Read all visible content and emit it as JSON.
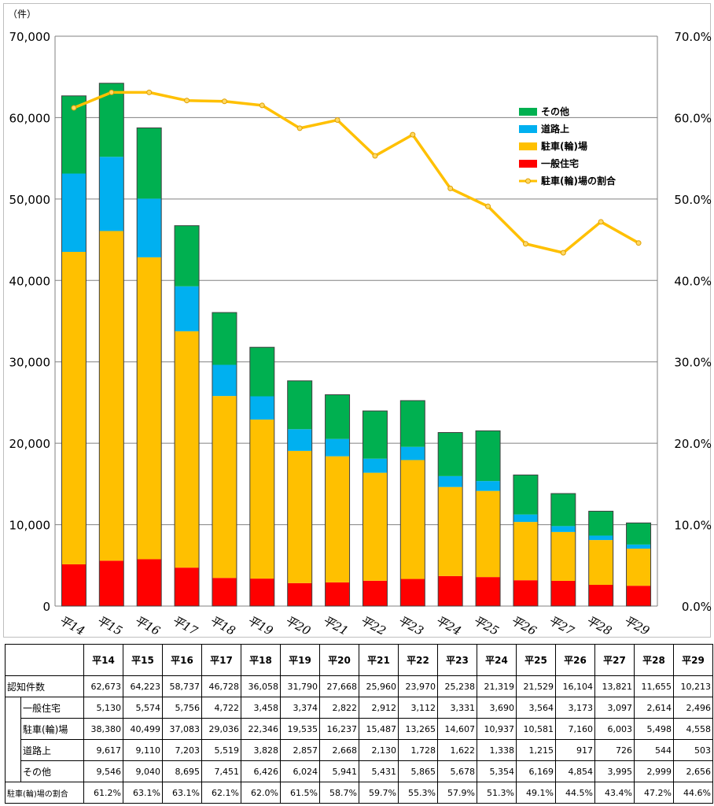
{
  "chart_data": {
    "type": "bar",
    "stacked": true,
    "unit_label": "（件）",
    "categories": [
      "平14",
      "平15",
      "平16",
      "平17",
      "平18",
      "平19",
      "平20",
      "平21",
      "平22",
      "平23",
      "平24",
      "平25",
      "平26",
      "平27",
      "平28",
      "平29"
    ],
    "y_left": {
      "min": 0,
      "max": 70000,
      "ticks": [
        "0",
        "10,000",
        "20,000",
        "30,000",
        "40,000",
        "50,000",
        "60,000",
        "70,000"
      ]
    },
    "y_right": {
      "min": 0,
      "max": 0.7,
      "ticks": [
        "0.0%",
        "10.0%",
        "20.0%",
        "30.0%",
        "40.0%",
        "50.0%",
        "60.0%",
        "70.0%"
      ]
    },
    "grid": true,
    "legend_position": "top-right",
    "series": [
      {
        "name": "一般住宅",
        "color": "#ff0000",
        "values": [
          5130,
          5574,
          5756,
          4722,
          3458,
          3374,
          2822,
          2912,
          3112,
          3331,
          3690,
          3564,
          3173,
          3097,
          2614,
          2496
        ]
      },
      {
        "name": "駐車(輪)場",
        "color": "#ffc000",
        "values": [
          38380,
          40499,
          37083,
          29036,
          22346,
          19535,
          16237,
          15487,
          13265,
          14607,
          10937,
          10581,
          7160,
          6003,
          5498,
          4558
        ]
      },
      {
        "name": "道路上",
        "color": "#00b0f0",
        "values": [
          9617,
          9110,
          7203,
          5519,
          3828,
          2857,
          2668,
          2130,
          1728,
          1622,
          1338,
          1215,
          917,
          726,
          544,
          503
        ]
      },
      {
        "name": "その他",
        "color": "#00b050",
        "values": [
          9546,
          9040,
          8695,
          7451,
          6426,
          6024,
          5941,
          5431,
          5865,
          5678,
          5354,
          6169,
          4854,
          3995,
          2999,
          2656
        ]
      }
    ],
    "line_series": {
      "name": "駐車(輪)場の割合",
      "color": "#ffc000",
      "values": [
        0.612,
        0.631,
        0.631,
        0.621,
        0.62,
        0.615,
        0.587,
        0.597,
        0.553,
        0.579,
        0.513,
        0.491,
        0.445,
        0.434,
        0.472,
        0.446
      ]
    },
    "legend_order": [
      "その他",
      "道路上",
      "駐車(輪)場",
      "一般住宅",
      "駐車(輪)場の割合"
    ]
  },
  "table": {
    "header": [
      "平14",
      "平15",
      "平16",
      "平17",
      "平18",
      "平19",
      "平20",
      "平21",
      "平22",
      "平23",
      "平24",
      "平25",
      "平26",
      "平27",
      "平28",
      "平29"
    ],
    "rows": [
      {
        "label": "認知件数",
        "indent": false,
        "values": [
          "62,673",
          "64,223",
          "58,737",
          "46,728",
          "36,058",
          "31,790",
          "27,668",
          "25,960",
          "23,970",
          "25,238",
          "21,319",
          "21,529",
          "16,104",
          "13,821",
          "11,655",
          "10,213"
        ]
      },
      {
        "label": "一般住宅",
        "indent": true,
        "values": [
          "5,130",
          "5,574",
          "5,756",
          "4,722",
          "3,458",
          "3,374",
          "2,822",
          "2,912",
          "3,112",
          "3,331",
          "3,690",
          "3,564",
          "3,173",
          "3,097",
          "2,614",
          "2,496"
        ]
      },
      {
        "label": "駐車(輪)場",
        "indent": true,
        "values": [
          "38,380",
          "40,499",
          "37,083",
          "29,036",
          "22,346",
          "19,535",
          "16,237",
          "15,487",
          "13,265",
          "14,607",
          "10,937",
          "10,581",
          "7,160",
          "6,003",
          "5,498",
          "4,558"
        ]
      },
      {
        "label": "道路上",
        "indent": true,
        "values": [
          "9,617",
          "9,110",
          "7,203",
          "5,519",
          "3,828",
          "2,857",
          "2,668",
          "2,130",
          "1,728",
          "1,622",
          "1,338",
          "1,215",
          "917",
          "726",
          "544",
          "503"
        ]
      },
      {
        "label": "その他",
        "indent": true,
        "values": [
          "9,546",
          "9,040",
          "8,695",
          "7,451",
          "6,426",
          "6,024",
          "5,941",
          "5,431",
          "5,865",
          "5,678",
          "5,354",
          "6,169",
          "4,854",
          "3,995",
          "2,999",
          "2,656"
        ]
      },
      {
        "label": "駐車(輪)場の割合",
        "indent": false,
        "values": [
          "61.2%",
          "63.1%",
          "63.1%",
          "62.1%",
          "62.0%",
          "61.5%",
          "58.7%",
          "59.7%",
          "55.3%",
          "57.9%",
          "51.3%",
          "49.1%",
          "44.5%",
          "43.4%",
          "47.2%",
          "44.6%"
        ]
      }
    ]
  }
}
